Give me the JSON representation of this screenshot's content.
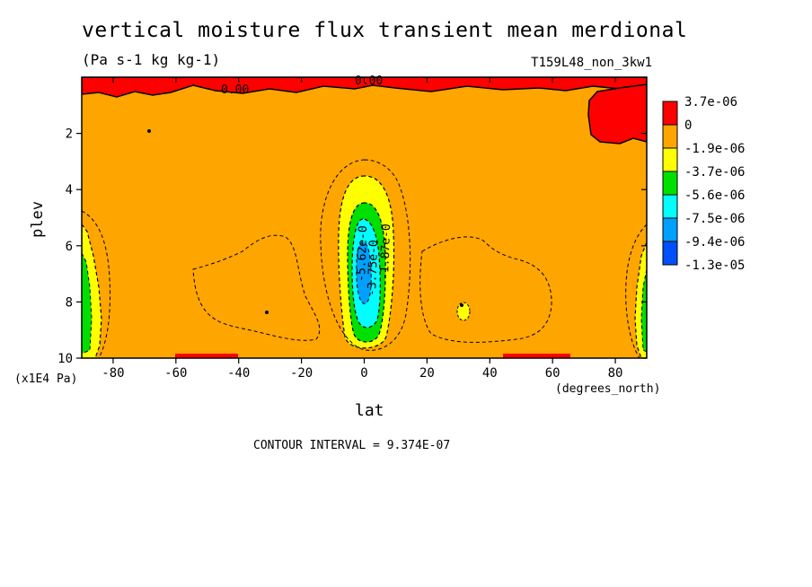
{
  "header": {
    "title": "vertical moisture flux transient mean merdional",
    "units": "(Pa s-1 kg kg-1)",
    "run_label": "T159L48_non_3kw1"
  },
  "footer": {
    "contour_interval": "CONTOUR INTERVAL = 9.374E-07"
  },
  "chart_data": {
    "type": "heatmap",
    "title": "vertical moisture flux transient mean merdional",
    "xlabel": "lat",
    "x_units": "(degrees_north)",
    "ylabel": "plev",
    "y_units": "(x1E4 Pa)",
    "xlim": [
      -90,
      90
    ],
    "ylim": [
      10,
      0
    ],
    "x_ticks": [
      -80,
      -60,
      -40,
      -20,
      0,
      20,
      40,
      60,
      80
    ],
    "y_ticks": [
      2,
      4,
      6,
      8,
      10
    ],
    "colorbar": [
      {
        "label": "3.7e-06",
        "color": "#ff0000"
      },
      {
        "label": "0",
        "color": "#ffa500"
      },
      {
        "label": "-1.9e-06",
        "color": "#ffff00"
      },
      {
        "label": "-3.7e-06",
        "color": "#00e000"
      },
      {
        "label": "-5.6e-06",
        "color": "#00ffff"
      },
      {
        "label": "-7.5e-06",
        "color": "#00a0ff"
      },
      {
        "label": "-9.4e-06",
        "color": "#0050ff"
      },
      {
        "label": "-1.3e-05",
        "color": null
      }
    ],
    "contour_labels": [
      "0.00",
      "0.00",
      "-5.62e-0",
      "-3.75e-0",
      "-1.87e-0"
    ],
    "grid": false
  }
}
